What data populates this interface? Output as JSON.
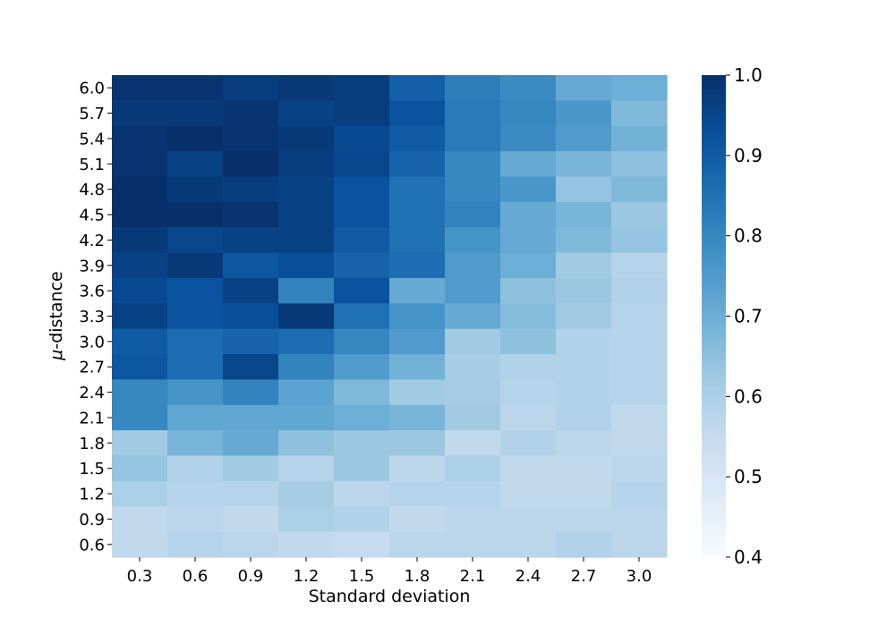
{
  "chart_data": {
    "type": "heatmap",
    "xlabel": "Standard deviation",
    "ylabel_symbol": "μ",
    "ylabel_rest": "-distance",
    "x_categories": [
      "0.3",
      "0.6",
      "0.9",
      "1.2",
      "1.5",
      "1.8",
      "2.1",
      "2.4",
      "2.7",
      "3.0"
    ],
    "y_categories": [
      "6.0",
      "5.7",
      "5.4",
      "5.1",
      "4.8",
      "4.5",
      "4.2",
      "3.9",
      "3.6",
      "3.3",
      "3.0",
      "2.7",
      "2.4",
      "2.1",
      "1.8",
      "1.5",
      "1.2",
      "0.9",
      "0.6"
    ],
    "values": [
      [
        0.99,
        0.99,
        0.97,
        0.98,
        0.97,
        0.89,
        0.82,
        0.79,
        0.71,
        0.7
      ],
      [
        0.98,
        0.98,
        0.99,
        0.96,
        0.97,
        0.92,
        0.83,
        0.8,
        0.76,
        0.67
      ],
      [
        0.99,
        1.0,
        0.99,
        0.98,
        0.94,
        0.9,
        0.83,
        0.79,
        0.75,
        0.69
      ],
      [
        0.99,
        0.96,
        1.0,
        0.97,
        0.95,
        0.88,
        0.8,
        0.71,
        0.68,
        0.65
      ],
      [
        1.0,
        0.98,
        0.97,
        0.96,
        0.92,
        0.85,
        0.8,
        0.76,
        0.64,
        0.67
      ],
      [
        1.0,
        1.0,
        0.99,
        0.96,
        0.92,
        0.85,
        0.81,
        0.71,
        0.68,
        0.63
      ],
      [
        0.98,
        0.95,
        0.96,
        0.96,
        0.9,
        0.85,
        0.77,
        0.71,
        0.67,
        0.64
      ],
      [
        0.96,
        0.98,
        0.91,
        0.93,
        0.88,
        0.86,
        0.75,
        0.7,
        0.62,
        0.58
      ],
      [
        0.94,
        0.92,
        0.96,
        0.81,
        0.92,
        0.71,
        0.75,
        0.65,
        0.63,
        0.59
      ],
      [
        0.96,
        0.92,
        0.93,
        0.98,
        0.85,
        0.77,
        0.71,
        0.66,
        0.62,
        0.58
      ],
      [
        0.9,
        0.86,
        0.88,
        0.86,
        0.8,
        0.75,
        0.62,
        0.65,
        0.59,
        0.58
      ],
      [
        0.91,
        0.86,
        0.95,
        0.81,
        0.75,
        0.69,
        0.61,
        0.59,
        0.59,
        0.58
      ],
      [
        0.8,
        0.77,
        0.81,
        0.73,
        0.67,
        0.62,
        0.61,
        0.58,
        0.59,
        0.58
      ],
      [
        0.8,
        0.72,
        0.72,
        0.72,
        0.7,
        0.68,
        0.62,
        0.57,
        0.59,
        0.56
      ],
      [
        0.62,
        0.68,
        0.71,
        0.65,
        0.63,
        0.63,
        0.56,
        0.59,
        0.57,
        0.56
      ],
      [
        0.64,
        0.59,
        0.62,
        0.58,
        0.63,
        0.57,
        0.6,
        0.56,
        0.56,
        0.57
      ],
      [
        0.6,
        0.58,
        0.58,
        0.61,
        0.57,
        0.58,
        0.58,
        0.56,
        0.56,
        0.58
      ],
      [
        0.56,
        0.57,
        0.56,
        0.6,
        0.59,
        0.56,
        0.57,
        0.57,
        0.57,
        0.57
      ],
      [
        0.56,
        0.58,
        0.57,
        0.56,
        0.55,
        0.57,
        0.57,
        0.57,
        0.59,
        0.57
      ]
    ],
    "vmin": 0.4,
    "vmax": 1.0,
    "colormap": "Blues",
    "colorbar_ticks": [
      "0.4",
      "0.5",
      "0.6",
      "0.7",
      "0.8",
      "0.9",
      "1.0"
    ]
  }
}
